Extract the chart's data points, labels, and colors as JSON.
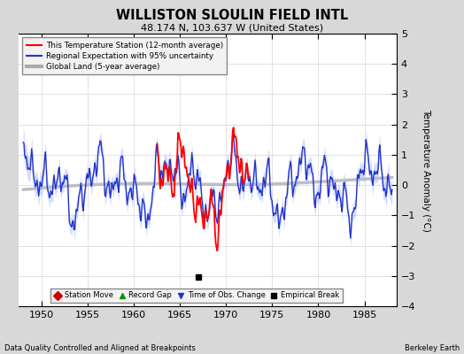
{
  "title": "WILLISTON SLOULIN FIELD INTL",
  "subtitle": "48.174 N, 103.637 W (United States)",
  "ylabel": "Temperature Anomaly (°C)",
  "footnote_left": "Data Quality Controlled and Aligned at Breakpoints",
  "footnote_right": "Berkeley Earth",
  "xlim": [
    1947.5,
    1988.5
  ],
  "ylim": [
    -4,
    5
  ],
  "yticks": [
    -4,
    -3,
    -2,
    -1,
    0,
    1,
    2,
    3,
    4,
    5
  ],
  "xticks": [
    1950,
    1955,
    1960,
    1965,
    1970,
    1975,
    1980,
    1985
  ],
  "fig_bg_color": "#d8d8d8",
  "plot_bg_color": "#ffffff",
  "grid_color": "#cccccc",
  "empirical_break_year": 1967.0,
  "legend_main_loc": "upper left",
  "red_line_color": "#ff0000",
  "blue_line_color": "#2233cc",
  "blue_band_color": "#aabbff",
  "gray_line_color": "#aaaaaa"
}
